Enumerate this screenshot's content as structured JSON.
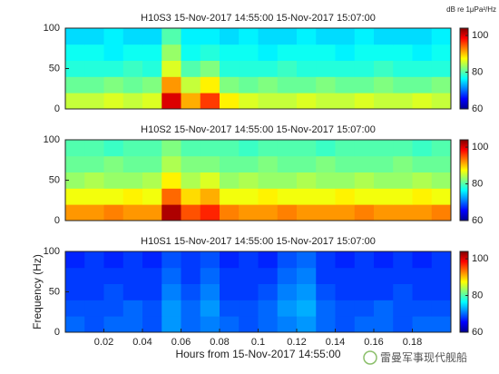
{
  "chart_data": [
    {
      "type": "heatmap",
      "title": "H10S3 15-Nov-2017 14:55:00 15-Nov-2017 15:07:00",
      "colorbar_label": "dB re 1μPa²/Hz",
      "time_bins": [
        0,
        0.01,
        0.02,
        0.03,
        0.04,
        0.05,
        0.06,
        0.07,
        0.08,
        0.09,
        0.1,
        0.11,
        0.12,
        0.13,
        0.14,
        0.15,
        0.16,
        0.17,
        0.18,
        0.19,
        0.2
      ],
      "freq_bins": [
        0,
        20,
        40,
        60,
        80,
        100
      ],
      "values": [
        [
          85,
          85,
          86,
          85,
          86,
          100,
          91,
          96,
          88,
          86,
          85,
          85,
          86,
          85,
          85,
          86,
          85,
          85,
          86,
          85
        ],
        [
          81,
          81,
          82,
          81,
          82,
          92,
          85,
          88,
          82,
          81,
          82,
          81,
          81,
          82,
          81,
          81,
          82,
          81,
          81,
          82
        ],
        [
          78,
          78,
          78,
          79,
          78,
          86,
          80,
          82,
          78,
          78,
          78,
          79,
          78,
          78,
          78,
          78,
          79,
          78,
          78,
          78
        ],
        [
          77,
          77,
          76,
          77,
          77,
          83,
          77,
          78,
          77,
          77,
          76,
          77,
          77,
          77,
          76,
          77,
          77,
          77,
          76,
          77
        ],
        [
          75,
          75,
          76,
          75,
          75,
          80,
          76,
          76,
          75,
          76,
          75,
          75,
          76,
          75,
          75,
          76,
          75,
          75,
          75,
          76
        ]
      ],
      "xlim": [
        0,
        0.2
      ],
      "ylim": [
        0,
        100
      ],
      "yticks": [
        0,
        50,
        100
      ],
      "colormap": "jet",
      "clim": [
        60,
        104
      ],
      "cticks": [
        60,
        80,
        100
      ]
    },
    {
      "type": "heatmap",
      "title": "H10S2 15-Nov-2017 14:55:00 15-Nov-2017 15:07:00",
      "time_bins": [
        0,
        0.01,
        0.02,
        0.03,
        0.04,
        0.05,
        0.06,
        0.07,
        0.08,
        0.09,
        0.1,
        0.11,
        0.12,
        0.13,
        0.14,
        0.15,
        0.16,
        0.17,
        0.18,
        0.19,
        0.2
      ],
      "freq_bins": [
        0,
        20,
        40,
        60,
        80,
        100
      ],
      "values": [
        [
          92,
          92,
          93,
          92,
          92,
          102,
          95,
          97,
          93,
          92,
          92,
          93,
          92,
          92,
          92,
          93,
          92,
          92,
          92,
          93
        ],
        [
          87,
          87,
          87,
          88,
          87,
          94,
          89,
          91,
          87,
          87,
          88,
          87,
          87,
          87,
          88,
          87,
          87,
          87,
          88,
          87
        ],
        [
          83,
          84,
          83,
          83,
          84,
          88,
          84,
          86,
          83,
          84,
          83,
          83,
          84,
          83,
          83,
          84,
          83,
          83,
          84,
          83
        ],
        [
          81,
          81,
          82,
          81,
          81,
          84,
          82,
          82,
          81,
          81,
          82,
          81,
          81,
          82,
          81,
          81,
          81,
          82,
          81,
          81
        ],
        [
          80,
          80,
          79,
          80,
          80,
          82,
          80,
          80,
          80,
          79,
          80,
          80,
          80,
          79,
          80,
          80,
          80,
          80,
          79,
          80
        ]
      ],
      "xlim": [
        0,
        0.2
      ],
      "ylim": [
        0,
        100
      ],
      "yticks": [
        0,
        50,
        100
      ],
      "colormap": "jet",
      "clim": [
        60,
        104
      ],
      "cticks": [
        60,
        80,
        100
      ]
    },
    {
      "type": "heatmap",
      "title": "H10S1 15-Nov-2017 14:55:00 15-Nov-2017 15:07:00",
      "x_label": "Hours from 15-Nov-2017 14:55:00",
      "y_label": "Frequency (Hz)",
      "time_bins": [
        0,
        0.01,
        0.02,
        0.03,
        0.04,
        0.05,
        0.06,
        0.07,
        0.08,
        0.09,
        0.1,
        0.11,
        0.12,
        0.13,
        0.14,
        0.15,
        0.16,
        0.17,
        0.18,
        0.19,
        0.2
      ],
      "freq_bins": [
        0,
        20,
        40,
        60,
        80,
        100
      ],
      "values": [
        [
          70,
          69,
          70,
          70,
          69,
          72,
          70,
          71,
          70,
          69,
          70,
          71,
          72,
          70,
          69,
          70,
          70,
          69,
          70,
          70
        ],
        [
          69,
          69,
          69,
          70,
          69,
          72,
          70,
          72,
          69,
          69,
          70,
          72,
          73,
          70,
          69,
          69,
          70,
          69,
          69,
          69
        ],
        [
          68,
          68,
          69,
          68,
          68,
          71,
          69,
          71,
          68,
          68,
          69,
          71,
          72,
          69,
          68,
          68,
          68,
          69,
          68,
          68
        ],
        [
          68,
          68,
          68,
          68,
          68,
          70,
          68,
          70,
          68,
          68,
          68,
          70,
          71,
          68,
          68,
          68,
          68,
          68,
          68,
          68
        ],
        [
          67,
          68,
          67,
          68,
          67,
          69,
          68,
          69,
          67,
          68,
          67,
          69,
          70,
          68,
          67,
          68,
          67,
          68,
          67,
          68
        ]
      ],
      "xlim": [
        0,
        0.2
      ],
      "ylim": [
        0,
        100
      ],
      "yticks": [
        0,
        50,
        100
      ],
      "xticks": [
        0.02,
        0.04,
        0.06,
        0.08,
        0.1,
        0.12,
        0.14,
        0.16,
        0.18
      ],
      "colormap": "jet",
      "clim": [
        60,
        104
      ],
      "cticks": [
        60,
        80,
        100
      ]
    }
  ],
  "watermark": "雷曼军事现代舰船"
}
